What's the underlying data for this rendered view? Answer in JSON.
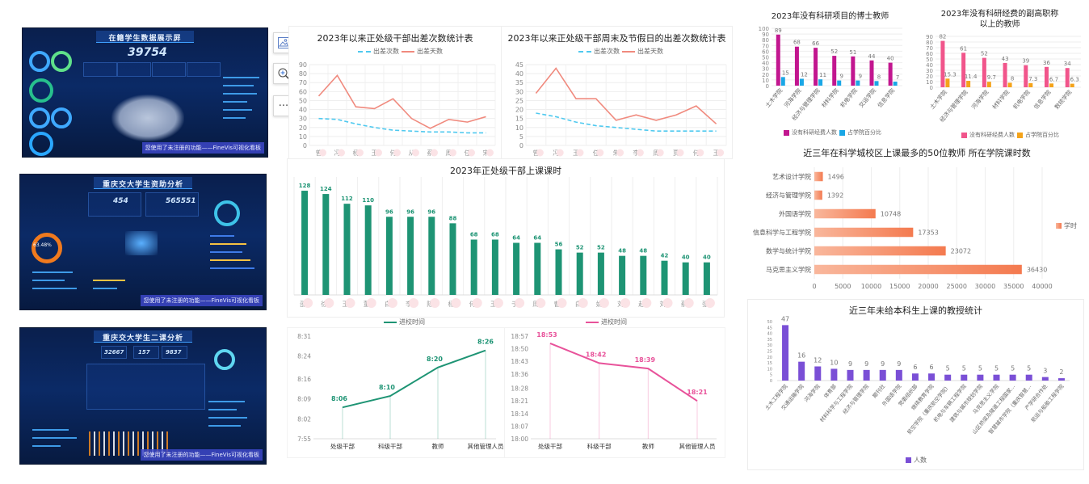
{
  "thumbnails": [
    {
      "title": "在籍学生数据展示屏",
      "big_number": "39754",
      "banner": "您使用了未注册的功能——FineVis可视化看板"
    },
    {
      "title": "重庆交大学生资助分析",
      "stat_a": "454",
      "stat_b": "565551",
      "ring": "63.48%",
      "banner": "您使用了未注册的功能——FineVis可视化看板"
    },
    {
      "title": "重庆交大学生二课分析",
      "stat_a": "32667",
      "stat_b": "157",
      "stat_c": "9837",
      "banner": "您使用了未注册的功能——FineVis可视化看板"
    }
  ],
  "toolbar": {
    "icons": [
      "image-icon",
      "zoom-in-icon",
      "more-icon"
    ],
    "more_label": "···"
  },
  "colors": {
    "green": "#1e9474",
    "pink_line": "#e8529a",
    "coral": "#f08a7e",
    "cyan": "#4fc9ef",
    "magenta": "#c2168f",
    "blue": "#1aa7e6",
    "pink_bar": "#f1558b",
    "orange": "#f4a31a",
    "purple": "#7a4fd6",
    "salmon_light": "#f9b79c",
    "salmon_dark": "#f47a4f"
  },
  "chart_data": [
    {
      "type": "line",
      "title": "2023年以来正处级干部出差次数统计表",
      "categories": [
        "曾",
        "冯",
        "杨",
        "王",
        "何",
        "从",
        "蔡",
        "周",
        "任",
        "宋"
      ],
      "ylim": [
        0,
        90
      ],
      "yticks": [
        0,
        10,
        20,
        30,
        40,
        50,
        60,
        70,
        80,
        90
      ],
      "grid": true,
      "legend": "top",
      "series": [
        {
          "name": "出差次数",
          "values": [
            30,
            29,
            24,
            20,
            17,
            16,
            15,
            15,
            14,
            14
          ],
          "style": "dashed"
        },
        {
          "name": "出差天数",
          "values": [
            55,
            78,
            43,
            41,
            52,
            30,
            19,
            29,
            26,
            32
          ],
          "style": "solid"
        }
      ]
    },
    {
      "type": "line",
      "title": "2023年以来正处级干部周末及节假日的出差次数统计表",
      "categories": [
        "曾",
        "冯",
        "王",
        "任",
        "朱",
        "李",
        "周",
        "贾",
        "何",
        "王"
      ],
      "ylim": [
        0,
        45
      ],
      "yticks": [
        0,
        5,
        10,
        15,
        20,
        25,
        30,
        35,
        40,
        45
      ],
      "grid": true,
      "legend": "top",
      "series": [
        {
          "name": "出差次数",
          "values": [
            18,
            16,
            13,
            11,
            10,
            9,
            8,
            8,
            8,
            8
          ],
          "style": "dashed"
        },
        {
          "name": "出差天数",
          "values": [
            29,
            43,
            26,
            26,
            14,
            17,
            14,
            17,
            22,
            12
          ],
          "style": "solid"
        }
      ]
    },
    {
      "type": "bar",
      "title": "2023年正处级干部上课课时",
      "categories": [
        "邵",
        "徐",
        "王",
        "董",
        "白",
        "李",
        "陈",
        "杨",
        "何",
        "王",
        "于",
        "周",
        "曹",
        "白",
        "姚",
        "刘",
        "赵",
        "刘",
        "蔡",
        "张"
      ],
      "values": [
        128,
        124,
        112,
        110,
        96,
        96,
        96,
        88,
        68,
        68,
        64,
        64,
        56,
        52,
        52,
        48,
        48,
        42,
        40,
        40
      ],
      "ylim": [
        0,
        135
      ],
      "grid": true
    },
    {
      "type": "line",
      "categories": [
        "处级干部",
        "科级干部",
        "教师",
        "其他管理人员"
      ],
      "series": [
        {
          "name": "进校时间",
          "values": [
            "8:06",
            "8:10",
            "8:20",
            "8:26"
          ]
        }
      ],
      "yticks": [
        "7:55",
        "8:02",
        "8:09",
        "8:16",
        "8:24",
        "8:31"
      ],
      "legend": "top"
    },
    {
      "type": "line",
      "categories": [
        "处级干部",
        "科级干部",
        "教师",
        "其他管理人员"
      ],
      "series": [
        {
          "name": "进校时间",
          "values": [
            "18:53",
            "18:42",
            "18:39",
            "18:21"
          ]
        }
      ],
      "yticks": [
        "18:00",
        "18:07",
        "18:14",
        "18:21",
        "18:28",
        "18:36",
        "18:43",
        "18:50",
        "18:57"
      ],
      "legend": "top"
    },
    {
      "type": "bar",
      "title": "2023年没有科研项目的博士教师",
      "categories": [
        "土木学院",
        "河海学院",
        "经济与管理学院",
        "材料学院",
        "机电学院",
        "交运学院",
        "信息学院"
      ],
      "series": [
        {
          "name": "没有科研经费人数",
          "values": [
            89,
            68,
            66,
            52,
            51,
            44,
            40
          ]
        },
        {
          "name": "占学院百分比",
          "values": [
            15,
            12,
            11,
            9,
            9,
            8,
            7
          ]
        }
      ],
      "ylim": [
        0,
        100
      ],
      "yticks": [
        0,
        10,
        20,
        30,
        40,
        50,
        60,
        70,
        80,
        90,
        100
      ],
      "legend": "bottom"
    },
    {
      "type": "bar",
      "title": "2023年没有科研经费的副高职称以上的教师",
      "categories": [
        "土木学院",
        "经济与管理学院",
        "河海学院",
        "材料学院",
        "机电学院",
        "信息学院",
        "数统学院"
      ],
      "series": [
        {
          "name": "没有科研经费人数",
          "values": [
            82,
            61,
            52,
            43,
            39,
            36,
            34
          ]
        },
        {
          "name": "占学院百分比",
          "values": [
            15.3,
            11.4,
            9.7,
            8,
            7.3,
            6.7,
            6.3
          ]
        }
      ],
      "ylim": [
        0,
        90
      ],
      "yticks": [
        0,
        10,
        20,
        30,
        40,
        50,
        60,
        70,
        80,
        90
      ],
      "legend": "bottom"
    },
    {
      "type": "bar",
      "orientation": "horizontal",
      "title": "近三年在科学城校区上课最多的50位教师  所在学院课时数",
      "categories": [
        "艺术设计学院",
        "经济与管理学院",
        "外国语学院",
        "信息科学与工程学院",
        "数学与统计学院",
        "马克思主义学院"
      ],
      "series": [
        {
          "name": "学时",
          "values": [
            1496,
            1392,
            10748,
            17353,
            23072,
            36430
          ]
        }
      ],
      "xlim": [
        0,
        40000
      ],
      "xticks": [
        0,
        5000,
        10000,
        15000,
        20000,
        25000,
        30000,
        35000,
        40000
      ],
      "grid": true,
      "legend": "right"
    },
    {
      "type": "bar",
      "title": "近三年未给本科生上课的教授统计",
      "categories": [
        "土木工程学院",
        "交通运输学院",
        "河海学院",
        "体育部",
        "材料科学与工程学院",
        "经济与管理学院",
        "期刊社",
        "外国语学院",
        "党委组织部",
        "继续教育学院",
        "航空学院（重庆航空学院）",
        "机电与车辆工程学院",
        "建筑与城市规划学院",
        "马克思主义学院",
        "山区桥梁及隧道工程国家...",
        "智慧城市学院（重庆智慧...",
        "产学研合作处",
        "航运与船舶工程学院"
      ],
      "series": [
        {
          "name": "人数",
          "values": [
            47,
            16,
            12,
            10,
            9,
            9,
            9,
            9,
            6,
            6,
            5,
            5,
            5,
            5,
            5,
            5,
            3,
            2
          ]
        }
      ],
      "ylim": [
        0,
        50
      ],
      "yticks": [
        0,
        5,
        10,
        15,
        20,
        25,
        30,
        35,
        40,
        45,
        50
      ],
      "legend": "bottom"
    }
  ]
}
